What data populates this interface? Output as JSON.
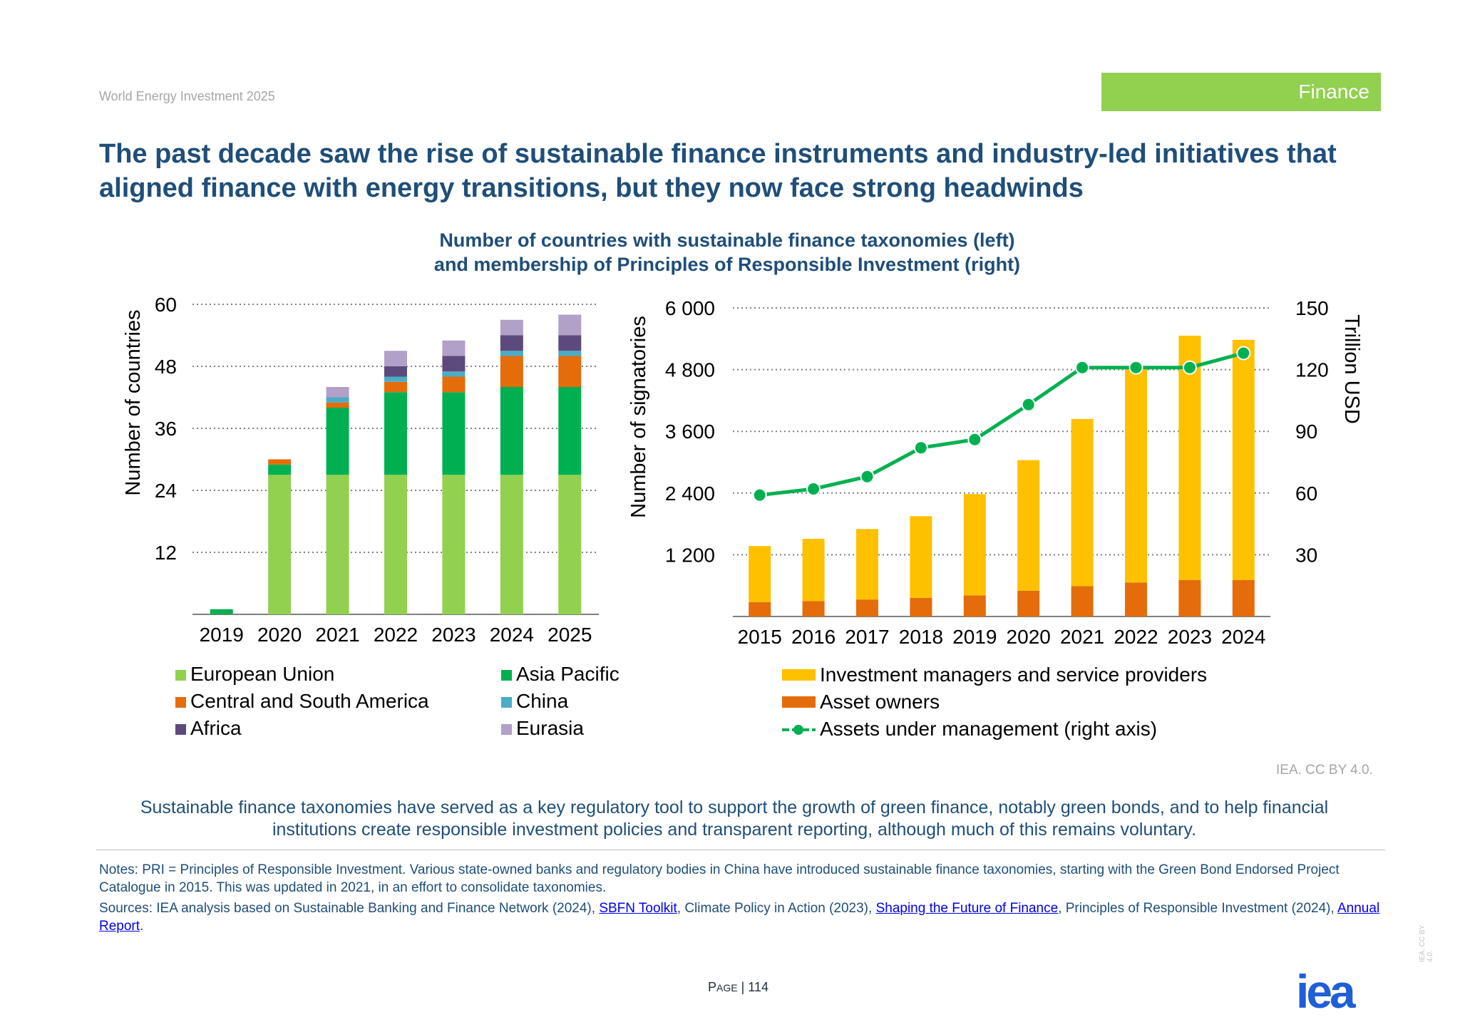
{
  "header": {
    "report_name": "World Energy Investment 2025",
    "section": "Finance",
    "headline": "The past decade saw the rise of sustainable finance instruments and industry-led initiatives that aligned finance with energy transitions, but they now face strong headwinds"
  },
  "chart_title_line1": "Number of countries with sustainable finance taxonomies (left)",
  "chart_title_line2": "and membership of Principles of Responsible Investment (right)",
  "chart_data": [
    {
      "type": "bar",
      "stacked": true,
      "categories": [
        "2019",
        "2020",
        "2021",
        "2022",
        "2023",
        "2024",
        "2025"
      ],
      "ylabel": "Number of countries",
      "ylim": [
        0,
        60
      ],
      "yticks": [
        12,
        24,
        36,
        48,
        60
      ],
      "ytick_labels": [
        "12",
        "24",
        "36",
        "48",
        "60"
      ],
      "grid": true,
      "legend_placement": "bottom",
      "series": [
        {
          "name": "European Union",
          "color": "#92d050",
          "values": [
            0,
            27,
            27,
            27,
            27,
            27,
            27
          ]
        },
        {
          "name": "Asia Pacific",
          "color": "#00b050",
          "values": [
            1,
            2,
            13,
            16,
            16,
            17,
            17
          ]
        },
        {
          "name": "Central and South America",
          "color": "#e46c0a",
          "values": [
            0,
            1,
            1,
            2,
            3,
            6,
            6
          ]
        },
        {
          "name": "China",
          "color": "#4bacc6",
          "values": [
            0,
            0,
            1,
            1,
            1,
            1,
            1
          ]
        },
        {
          "name": "Africa",
          "color": "#5c4a7d",
          "values": [
            0,
            0,
            0,
            2,
            3,
            3,
            3
          ]
        },
        {
          "name": "Eurasia",
          "color": "#b1a0c7",
          "values": [
            0,
            0,
            2,
            3,
            3,
            3,
            4
          ]
        }
      ]
    },
    {
      "type": "bar",
      "stacked": true,
      "categories": [
        "2015",
        "2016",
        "2017",
        "2018",
        "2019",
        "2020",
        "2021",
        "2022",
        "2023",
        "2024"
      ],
      "ylabel": "Number of signatories",
      "ylim": [
        0,
        6000
      ],
      "yticks": [
        1200,
        2400,
        3600,
        4800,
        6000
      ],
      "ytick_labels": [
        "1 200",
        "2 400",
        "3 600",
        "4 800",
        "6 000"
      ],
      "y2label": "Trillion USD",
      "y2lim": [
        0,
        150
      ],
      "y2ticks": [
        30,
        60,
        90,
        120,
        150
      ],
      "y2tick_labels": [
        "30",
        "60",
        "90",
        "120",
        "150"
      ],
      "grid": true,
      "legend_placement": "bottom",
      "series": [
        {
          "name": "Asset owners",
          "color": "#e46c0a",
          "values": [
            280,
            300,
            330,
            360,
            410,
            500,
            590,
            660,
            710,
            710
          ]
        },
        {
          "name": "Investment managers and service providers",
          "color": "#ffc000",
          "values": [
            1090,
            1210,
            1370,
            1590,
            1970,
            2540,
            3250,
            4170,
            4750,
            4670
          ]
        }
      ],
      "line_series": {
        "name": "Assets under management (right axis)",
        "color": "#00b050",
        "axis": "right",
        "values": [
          59,
          62,
          68,
          82,
          86,
          103,
          121,
          121,
          121,
          128
        ]
      }
    }
  ],
  "legend_left": [
    {
      "label": "European Union",
      "color": "#92d050"
    },
    {
      "label": "Asia Pacific",
      "color": "#00b050"
    },
    {
      "label": "Central and South America",
      "color": "#e46c0a"
    },
    {
      "label": "China",
      "color": "#4bacc6"
    },
    {
      "label": "Africa",
      "color": "#5c4a7d"
    },
    {
      "label": "Eurasia",
      "color": "#b1a0c7"
    }
  ],
  "legend_right": [
    {
      "label": "Investment managers and service providers",
      "color": "#ffc000",
      "kind": "bar"
    },
    {
      "label": "Asset owners",
      "color": "#e46c0a",
      "kind": "bar"
    },
    {
      "label": "Assets under management (right axis)",
      "color": "#00b050",
      "kind": "line"
    }
  ],
  "credit": "IEA. CC BY 4.0.",
  "key_message": "Sustainable finance taxonomies have served as a key regulatory tool to support the growth of green finance, notably green bonds, and to help financial institutions create responsible investment policies and transparent reporting, although much of this remains voluntary.",
  "notes": "Notes: PRI = Principles of Responsible Investment. Various state-owned banks and regulatory bodies in China have introduced sustainable finance taxonomies, starting with the Green Bond Endorsed Project Catalogue in 2015. This was updated in 2021, in an effort to consolidate taxonomies.",
  "sources": {
    "part1": "Sources: IEA analysis based on Sustainable Banking and Finance Network (2024), ",
    "link1": "SBFN Toolkit",
    "part2": ", Climate Policy in Action (2023), ",
    "link2": "Shaping the Future of Finance",
    "part3": ", Principles of Responsible Investment (2024), ",
    "link3": "Annual Report",
    "part4": "."
  },
  "page": {
    "label_first": "P",
    "label_rest": "AGE",
    "separator": " | ",
    "number": "114"
  },
  "logo": "iea",
  "side_credit": "IEA. CC BY 4.0."
}
